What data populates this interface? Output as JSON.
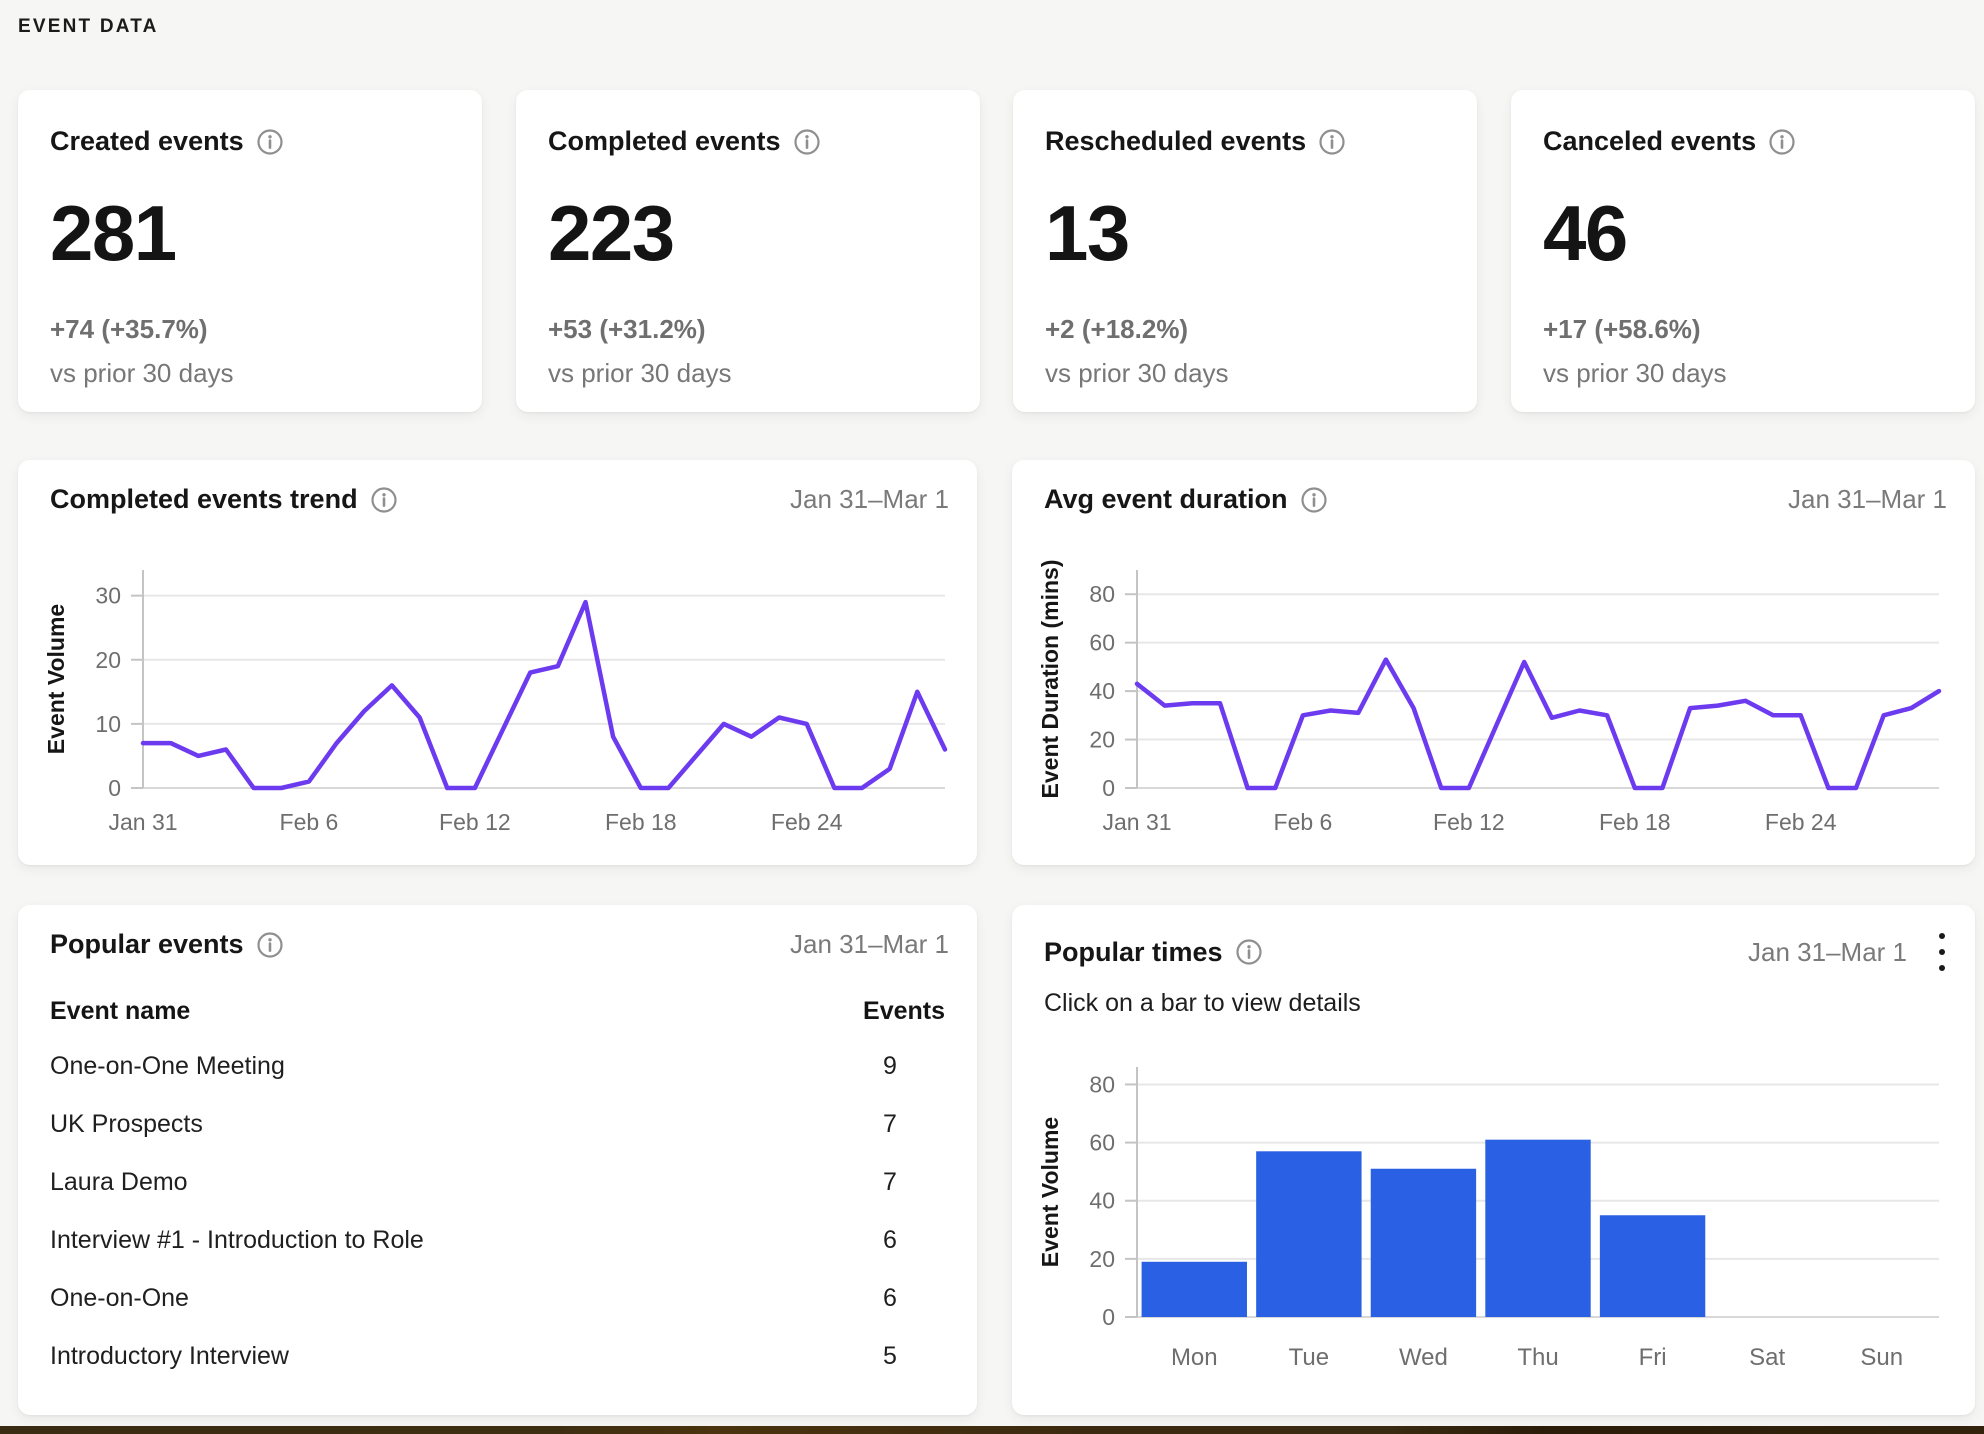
{
  "page": {
    "section_title": "EVENT DATA"
  },
  "colors": {
    "accent_purple": "#6d3bef",
    "accent_blue": "#2a61e4",
    "page_bg": "#f6f6f5",
    "card_bg": "#ffffff",
    "muted_text": "#767676",
    "grid_line": "#e7e7e7",
    "bottom_strip": "#3a2a11"
  },
  "stat_cards": [
    {
      "title": "Created events",
      "value": "281",
      "delta": "+74 (+35.7%)",
      "caption": "vs prior 30 days"
    },
    {
      "title": "Completed events",
      "value": "223",
      "delta": "+53 (+31.2%)",
      "caption": "vs prior 30 days"
    },
    {
      "title": "Rescheduled events",
      "value": "13",
      "delta": "+2 (+18.2%)",
      "caption": "vs prior 30 days"
    },
    {
      "title": "Canceled events",
      "value": "46",
      "delta": "+17 (+58.6%)",
      "caption": "vs prior 30 days"
    }
  ],
  "chart_data": [
    {
      "type": "line",
      "title": "Completed events trend",
      "date_range": "Jan 31–Mar 1",
      "ylabel": "Event Volume",
      "yticks": [
        0,
        10,
        20,
        30
      ],
      "ylim": [
        0,
        34
      ],
      "grid": true,
      "legend": "none",
      "color": "#6d3bef",
      "xticks": [
        {
          "index": 0,
          "label": "Jan 31"
        },
        {
          "index": 6,
          "label": "Feb 6"
        },
        {
          "index": 12,
          "label": "Feb 12"
        },
        {
          "index": 18,
          "label": "Feb 18"
        },
        {
          "index": 24,
          "label": "Feb 24"
        }
      ],
      "values": [
        7,
        7,
        5,
        6,
        0,
        0,
        1,
        7,
        12,
        16,
        11,
        0,
        0,
        9,
        18,
        19,
        29,
        8,
        0,
        0,
        5,
        10,
        8,
        11,
        10,
        0,
        0,
        3,
        15,
        6
      ]
    },
    {
      "type": "line",
      "title": "Avg event duration",
      "date_range": "Jan 31–Mar 1",
      "ylabel": "Event Duration (mins)",
      "yticks": [
        0,
        20,
        40,
        60,
        80
      ],
      "ylim": [
        0,
        90
      ],
      "grid": true,
      "legend": "none",
      "color": "#6d3bef",
      "xticks": [
        {
          "index": 0,
          "label": "Jan 31"
        },
        {
          "index": 6,
          "label": "Feb 6"
        },
        {
          "index": 12,
          "label": "Feb 12"
        },
        {
          "index": 18,
          "label": "Feb 18"
        },
        {
          "index": 24,
          "label": "Feb 24"
        }
      ],
      "values": [
        43,
        34,
        35,
        35,
        0,
        0,
        30,
        32,
        31,
        53,
        33,
        0,
        0,
        26,
        52,
        29,
        32,
        30,
        0,
        0,
        33,
        34,
        36,
        30,
        30,
        0,
        0,
        30,
        33,
        40
      ]
    },
    {
      "type": "bar",
      "title": "Popular times",
      "subtitle": "Click on a bar to view details",
      "date_range": "Jan 31–Mar 1",
      "ylabel": "Event Volume",
      "yticks": [
        0,
        20,
        40,
        60,
        80
      ],
      "ylim": [
        0,
        86
      ],
      "grid": true,
      "legend": "none",
      "color": "#2a61e4",
      "categories": [
        "Mon",
        "Tue",
        "Wed",
        "Thu",
        "Fri",
        "Sat",
        "Sun"
      ],
      "values": [
        19,
        57,
        51,
        61,
        35,
        0,
        0
      ]
    },
    {
      "type": "table",
      "title": "Popular events",
      "date_range": "Jan 31–Mar 1",
      "columns": [
        "Event name",
        "Events"
      ],
      "rows": [
        [
          "One-on-One Meeting",
          "9"
        ],
        [
          "UK Prospects",
          "7"
        ],
        [
          "Laura Demo",
          "7"
        ],
        [
          "Interview #1 - Introduction to Role",
          "6"
        ],
        [
          "One-on-One",
          "6"
        ],
        [
          "Introductory Interview",
          "5"
        ]
      ]
    }
  ]
}
